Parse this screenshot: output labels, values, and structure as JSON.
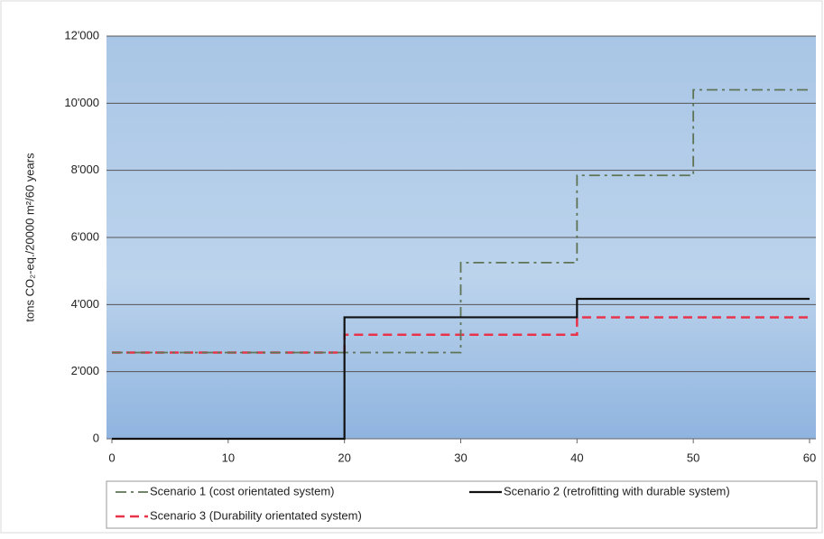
{
  "chart_data": {
    "type": "line",
    "y_label": "tons CO₂-eq./20000 m²/60 years",
    "xlim": [
      0,
      60
    ],
    "xticks": [
      0,
      10,
      20,
      30,
      40,
      50,
      60
    ],
    "ylim": [
      0,
      12000
    ],
    "yticks": [
      0,
      {
        "value": 2000,
        "label": "2'000"
      },
      {
        "value": 4000,
        "label": "4'000"
      },
      {
        "value": 6000,
        "label": "6'000"
      },
      {
        "value": 8000,
        "label": "8'000"
      },
      {
        "value": 10000,
        "label": "10'000"
      },
      {
        "value": 12000,
        "label": "12'000"
      }
    ],
    "grid": true,
    "legend": "bottom",
    "series": [
      {
        "name": "Scenario 1 (cost orientated system)",
        "color": "#5f7355",
        "dash": "dashdot",
        "x": [
          0,
          30,
          30,
          40,
          40,
          50,
          50,
          60
        ],
        "values": [
          2570,
          2570,
          5250,
          5250,
          7850,
          7850,
          10400,
          10400
        ]
      },
      {
        "name": "Scenario 2 (retrofitting with durable system)",
        "color": "#111111",
        "dash": "solid",
        "x": [
          0,
          20,
          20,
          40,
          40,
          60
        ],
        "values": [
          0,
          0,
          3620,
          3620,
          4170,
          4170
        ]
      },
      {
        "name": "Scenario 3 (Durability orientated system)",
        "color": "#e8334a",
        "dash": "dashed",
        "x": [
          0,
          20,
          20,
          40,
          40,
          60
        ],
        "values": [
          2570,
          2570,
          3100,
          3100,
          3620,
          3620
        ]
      }
    ]
  }
}
